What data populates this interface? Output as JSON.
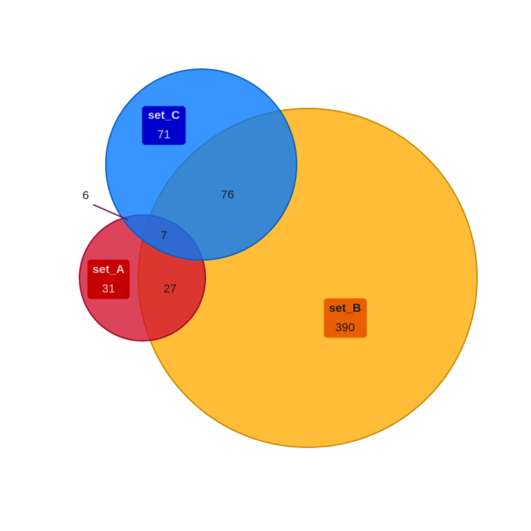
{
  "sets": {
    "a": {
      "name": "set_A",
      "count": "31",
      "fill": "#d2102e",
      "stroke": "#a10a25",
      "label_bg": "#c60000",
      "label_text": "#f2c9c9"
    },
    "b": {
      "name": "set_B",
      "count": "390",
      "fill": "#ffaa00",
      "stroke": "#c98a00",
      "label_bg": "#e85e00",
      "label_text": "#1a1a1a"
    },
    "c": {
      "name": "set_C",
      "count": "71",
      "fill": "#0077ff",
      "stroke": "#0a5fc0",
      "label_bg": "#0000cc",
      "label_text": "#d6d6f5"
    }
  },
  "intersections": {
    "a_c_only": "6",
    "a_b_c": "7",
    "a_b_only": "27",
    "b_c_only": "76"
  },
  "colors": {
    "leader_line": "#6a1458",
    "background": "#ffffff"
  }
}
